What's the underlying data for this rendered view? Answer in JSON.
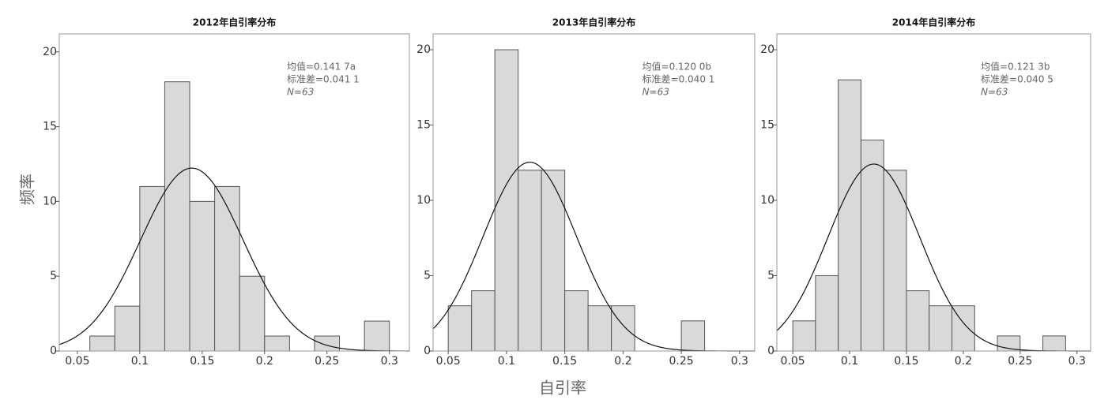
{
  "chart_data": [
    {
      "type": "histogram",
      "title": "2012年自引率分布",
      "bins": [
        0.06,
        0.08,
        0.1,
        0.12,
        0.14,
        0.16,
        0.18,
        0.2,
        0.22,
        0.24,
        0.26,
        0.28,
        0.3
      ],
      "counts": [
        1,
        3,
        11,
        18,
        10,
        11,
        5,
        1,
        0,
        1,
        0,
        2
      ],
      "color": "#d9d9d9",
      "xlim": [
        0.0355,
        0.316
      ],
      "ylim": [
        0,
        21.2
      ],
      "xticks": [
        0.05,
        0.1,
        0.15,
        0.2,
        0.25,
        0.3
      ],
      "yticks": [
        0,
        5,
        10,
        15,
        20
      ],
      "annotations": [
        "均值=0.141 7a",
        "标准差=0.041 1",
        "N=63"
      ],
      "curve": {
        "mean": 0.1417,
        "sd": 0.0411,
        "n": 63
      }
    },
    {
      "type": "histogram",
      "title": "2013年自引率分布",
      "bins": [
        0.05,
        0.07,
        0.09,
        0.11,
        0.13,
        0.15,
        0.17,
        0.19,
        0.21,
        0.23,
        0.25,
        0.27
      ],
      "counts": [
        3,
        4,
        20,
        12,
        12,
        4,
        3,
        3,
        0,
        0,
        2
      ],
      "color": "#d9d9d9",
      "xlim": [
        0.037,
        0.313
      ],
      "ylim": [
        0,
        21.05
      ],
      "xticks": [
        0.05,
        0.1,
        0.15,
        0.2,
        0.25,
        0.3
      ],
      "yticks": [
        0,
        5,
        10,
        15,
        20
      ],
      "annotations": [
        "均值=0.120 0b",
        "标准差=0.040 1",
        "N=63"
      ],
      "curve": {
        "mean": 0.12,
        "sd": 0.0401,
        "n": 63
      }
    },
    {
      "type": "histogram",
      "title": "2014年自引率分布",
      "bins": [
        0.05,
        0.07,
        0.09,
        0.11,
        0.13,
        0.15,
        0.17,
        0.19,
        0.21,
        0.23,
        0.25,
        0.27,
        0.29
      ],
      "counts": [
        2,
        5,
        18,
        14,
        12,
        4,
        3,
        3,
        0,
        1,
        0,
        1
      ],
      "color": "#d9d9d9",
      "xlim": [
        0.036,
        0.312
      ],
      "ylim": [
        0,
        21.05
      ],
      "xticks": [
        0.05,
        0.1,
        0.15,
        0.2,
        0.25,
        0.3
      ],
      "yticks": [
        0,
        5,
        10,
        15,
        20
      ],
      "annotations": [
        "均值=0.121 3b",
        "标准差=0.040 5",
        "N=63"
      ],
      "curve": {
        "mean": 0.1213,
        "sd": 0.0405,
        "n": 63
      }
    }
  ],
  "xlabel": "自引率",
  "ylabel": "频率"
}
